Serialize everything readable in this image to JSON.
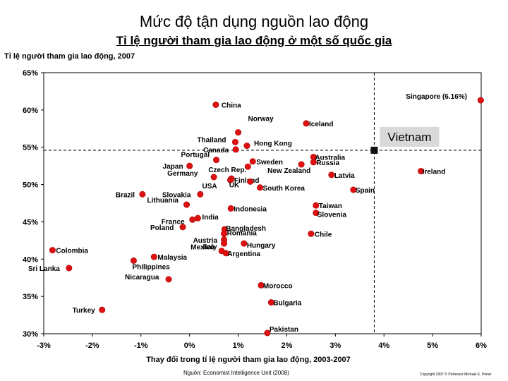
{
  "title": "Mức độ tận dụng nguồn lao động",
  "subtitle": "Tỉ lệ người tham gia lao động ở một số quốc gia",
  "footer": {
    "source": "Nguồn: Economist Intelligence Unit (2008)",
    "copyright": "Copyright 2007 © Professor Michael E. Porter"
  },
  "chart_data": {
    "type": "scatter",
    "title": "Tỉ lệ người tham gia lao động, 2007",
    "xlabel": "Thay đổi trong tỉ lệ người tham gia lao động, 2003-2007",
    "ylabel": "Tỉ lệ người tham gia lao động, 2007",
    "xlim": [
      -3,
      6
    ],
    "ylim": [
      30,
      65
    ],
    "x_ticks": [
      "-3%",
      "-2%",
      "-1%",
      "0%",
      "1%",
      "2%",
      "3%",
      "4%",
      "5%",
      "6%"
    ],
    "y_ticks": [
      "30%",
      "35%",
      "40%",
      "45%",
      "50%",
      "55%",
      "60%",
      "65%"
    ],
    "reference_lines": {
      "x": 3.8,
      "y": 54.6
    },
    "highlight": {
      "label": "Vietnam",
      "x": 3.8,
      "y": 54.6
    },
    "marker_color": "#dd1111",
    "points": [
      {
        "label": "Singapore (6.16%)",
        "x": 5.99,
        "y": 61.3
      },
      {
        "label": "China",
        "x": 0.54,
        "y": 60.7
      },
      {
        "label": "Iceland",
        "x": 2.4,
        "y": 58.2
      },
      {
        "label": "Norway",
        "x": 1.0,
        "y": 57.0
      },
      {
        "label": "Thailand",
        "x": 0.94,
        "y": 55.7
      },
      {
        "label": "Hong Kong",
        "x": 1.18,
        "y": 55.2
      },
      {
        "label": "Canada",
        "x": 0.95,
        "y": 54.7
      },
      {
        "label": "Australia",
        "x": 2.55,
        "y": 53.7
      },
      {
        "label": "Portugal",
        "x": 0.55,
        "y": 53.3
      },
      {
        "label": "Sweden",
        "x": 1.3,
        "y": 53.1
      },
      {
        "label": "Russia",
        "x": 2.55,
        "y": 53.0
      },
      {
        "label": "Japan",
        "x": 0.0,
        "y": 52.5
      },
      {
        "label": "Ireland",
        "x": 4.76,
        "y": 51.8
      },
      {
        "label": "Czech Rep.",
        "x": 1.2,
        "y": 52.4
      },
      {
        "label": "New Zealand",
        "x": 2.3,
        "y": 52.7
      },
      {
        "label": "Germany",
        "x": 0.5,
        "y": 51.0
      },
      {
        "label": "Latvia",
        "x": 2.92,
        "y": 51.3
      },
      {
        "label": "Finland",
        "x": 0.86,
        "y": 50.8
      },
      {
        "label": "USA",
        "x": 0.84,
        "y": 50.6
      },
      {
        "label": "UK",
        "x": 1.25,
        "y": 50.4
      },
      {
        "label": "South Korea",
        "x": 1.45,
        "y": 49.6
      },
      {
        "label": "Spain",
        "x": 3.37,
        "y": 49.3
      },
      {
        "label": "Brazil",
        "x": -0.97,
        "y": 48.7
      },
      {
        "label": "Slovakia",
        "x": 0.22,
        "y": 48.7
      },
      {
        "label": "Lithuania",
        "x": -0.06,
        "y": 47.3
      },
      {
        "label": "Taiwan",
        "x": 2.6,
        "y": 47.2
      },
      {
        "label": "Indonesia",
        "x": 0.85,
        "y": 46.8
      },
      {
        "label": "Slovenia",
        "x": 2.6,
        "y": 46.2
      },
      {
        "label": "India",
        "x": 0.17,
        "y": 45.5
      },
      {
        "label": "France",
        "x": 0.06,
        "y": 45.3
      },
      {
        "label": "Poland",
        "x": -0.14,
        "y": 44.3
      },
      {
        "label": "Bangladesh",
        "x": 0.72,
        "y": 44.0
      },
      {
        "label": "Romania",
        "x": 0.71,
        "y": 43.4
      },
      {
        "label": "Chile",
        "x": 2.5,
        "y": 43.4
      },
      {
        "label": "Austria",
        "x": 0.71,
        "y": 42.6
      },
      {
        "label": "Italy",
        "x": 0.71,
        "y": 42.1
      },
      {
        "label": "Hungary",
        "x": 1.12,
        "y": 42.1
      },
      {
        "label": "Colombia",
        "x": -2.82,
        "y": 41.2
      },
      {
        "label": "Mexico",
        "x": 0.66,
        "y": 41.1
      },
      {
        "label": "Argentina",
        "x": 0.75,
        "y": 40.8
      },
      {
        "label": "Malaysia",
        "x": -0.73,
        "y": 40.3
      },
      {
        "label": "Philippines",
        "x": -1.15,
        "y": 39.8
      },
      {
        "label": "Sri Lanka",
        "x": -2.48,
        "y": 38.8
      },
      {
        "label": "Nicaragua",
        "x": -0.43,
        "y": 37.3
      },
      {
        "label": "Morocco",
        "x": 1.47,
        "y": 36.5
      },
      {
        "label": "Bulgaria",
        "x": 1.68,
        "y": 34.2
      },
      {
        "label": "Turkey",
        "x": -1.8,
        "y": 33.2
      },
      {
        "label": "Pakistan",
        "x": 1.6,
        "y": 30.1
      }
    ]
  }
}
